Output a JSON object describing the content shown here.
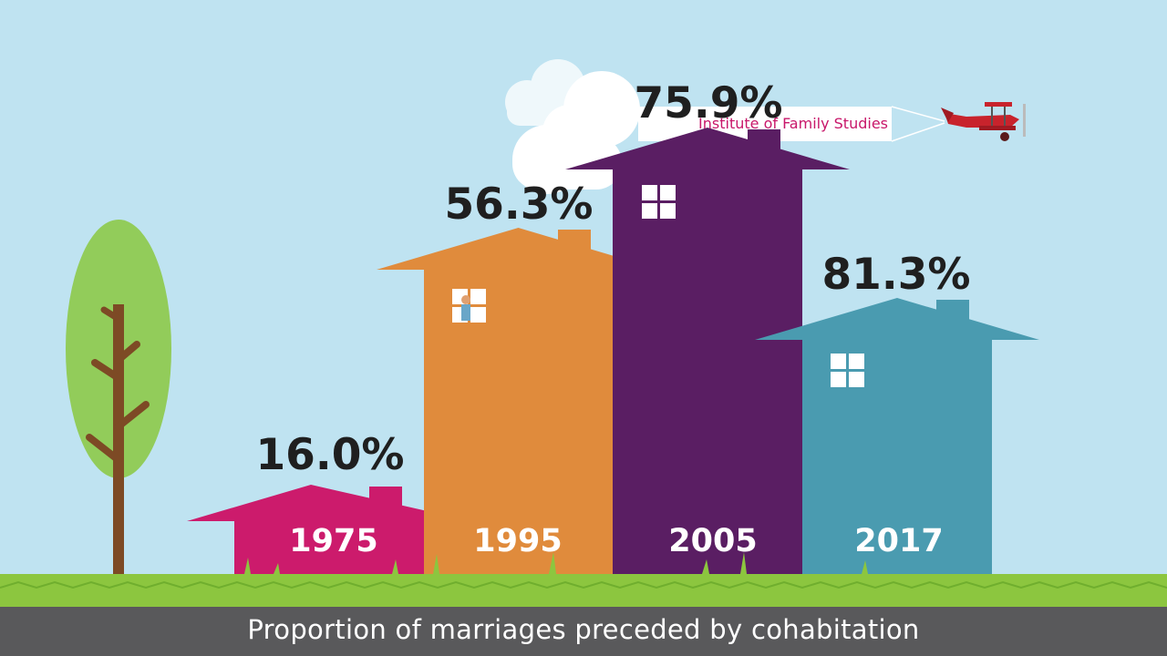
{
  "chart_data": {
    "type": "bar",
    "categories": [
      "1975",
      "1995",
      "2005",
      "2017"
    ],
    "values": [
      16.0,
      56.3,
      75.9,
      81.3
    ],
    "value_labels": [
      "16.0%",
      "56.3%",
      "75.9%",
      "81.3%"
    ],
    "title": "Proportion of marriages preceded by cohabitation",
    "colors": [
      "#cc1b6c",
      "#e08b3c",
      "#5a1e63",
      "#4a9bb0"
    ]
  },
  "banner": {
    "text": "Institute of Family Studies"
  },
  "palette": {
    "sky": "#bfe3f1",
    "grass": "#8cc63f",
    "tree_leaf": "#92cc5a",
    "tree_trunk": "#7d4a25",
    "caption_bar": "#59595b",
    "plane": "#c8232c"
  },
  "icons": [
    "tree-icon",
    "cloud-icon",
    "airplane-icon",
    "window-icon",
    "person-icon"
  ]
}
